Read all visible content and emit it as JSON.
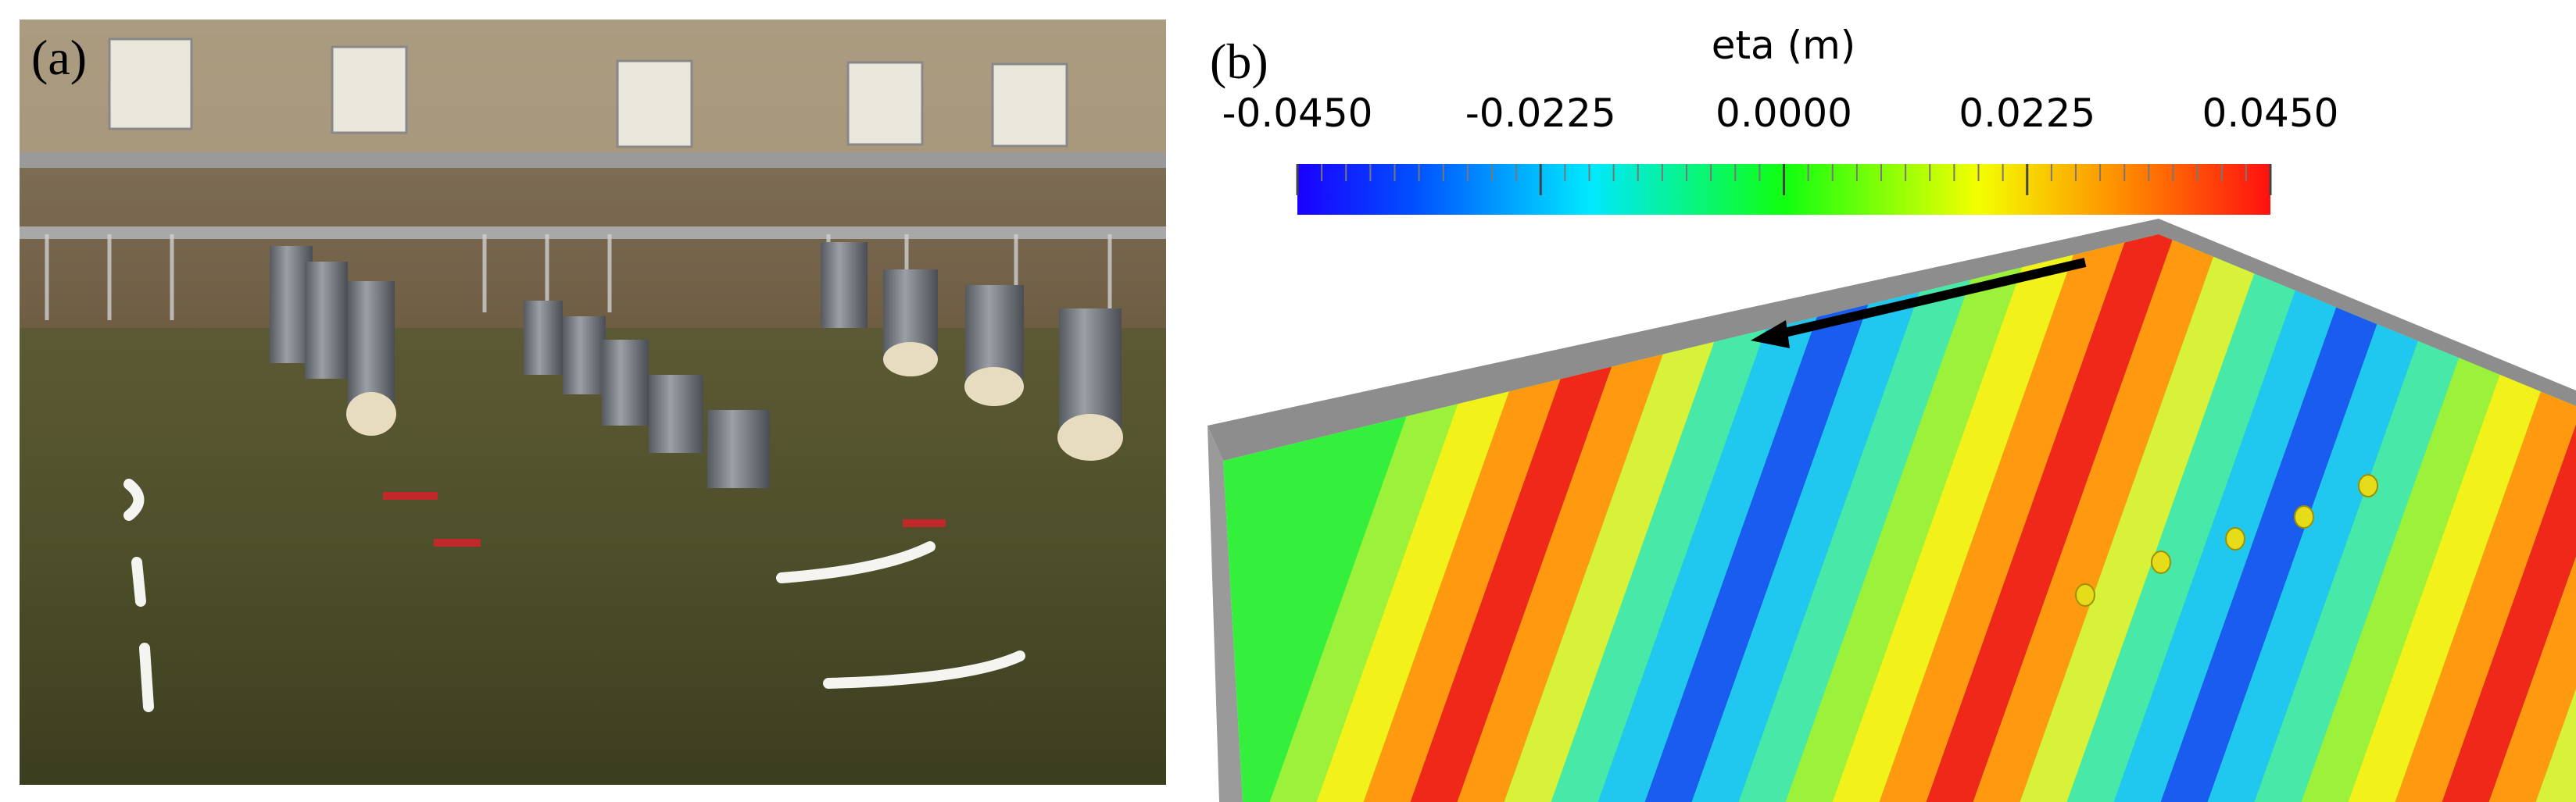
{
  "panels": {
    "a": {
      "label": "(a)"
    },
    "b": {
      "label": "(b)"
    }
  },
  "colorbar": {
    "title": "eta (m)",
    "lim": [
      -0.045,
      0.045
    ],
    "ticks": [
      {
        "value": -0.045,
        "label": "-0.0450"
      },
      {
        "value": -0.0225,
        "label": "-0.0225"
      },
      {
        "value": 0,
        "label": "0.0000"
      },
      {
        "value": 0.0225,
        "label": "0.0225"
      },
      {
        "value": 0.045,
        "label": "0.0450"
      }
    ]
  }
}
